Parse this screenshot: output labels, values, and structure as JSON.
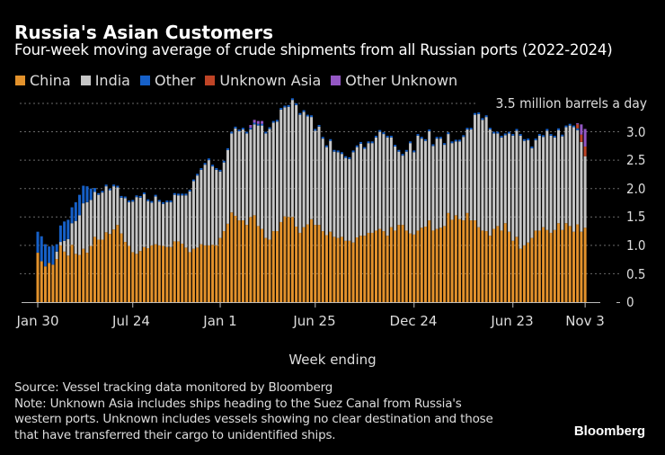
{
  "header": {
    "title": "Russia's Asian Customers",
    "subtitle": "Four-week moving average of crude shipments from all Russian ports (2022-2024)"
  },
  "footer": {
    "source": "Source: Vessel tracking data monitored by Bloomberg",
    "note_lines": [
      "Note: Unknown Asia includes ships heading to the Suez Canal from Russia's",
      "western ports. Unknown includes vessels showing no clear destination and those",
      "that have transferred their cargo to unidentified ships."
    ],
    "logo": "Bloomberg"
  },
  "chart_data": {
    "type": "bar",
    "stacked": true,
    "title": "Russia's Asian Customers",
    "subtitle": "Four-week moving average of crude shipments from all Russian ports (2022-2024)",
    "xlabel": "Week ending",
    "ylabel": "3.5 million barrels a day",
    "ylim": [
      0,
      3.5
    ],
    "yticks": [
      "0",
      "0.5",
      "1.0",
      "1.5",
      "2.0",
      "2.5",
      "3.0",
      "3.5 million barrels a day"
    ],
    "ytick_values": [
      0,
      0.5,
      1.0,
      1.5,
      2.0,
      2.5,
      3.0,
      3.5
    ],
    "xticks": [
      "Jan 30",
      "Jul 24",
      "Jan 1",
      "Jun 25",
      "Dec 24",
      "Jun 23",
      "Nov 3"
    ],
    "grid": true,
    "legend_position": "top-left",
    "colors": {
      "China": "#e3922c",
      "India": "#c6c6c6",
      "Other": "#1660c8",
      "Unknown Asia": "#bf4426",
      "Other Unknown": "#9457c4"
    },
    "series": [
      {
        "name": "China",
        "values": [
          0.87,
          0.72,
          0.63,
          0.69,
          0.66,
          0.76,
          1.0,
          0.89,
          0.82,
          1.01,
          0.85,
          0.83,
          0.94,
          0.87,
          0.99,
          1.15,
          1.1,
          1.1,
          1.23,
          1.2,
          1.28,
          1.36,
          1.21,
          1.06,
          0.99,
          0.88,
          0.85,
          0.9,
          0.97,
          0.95,
          1.0,
          1.02,
          1.0,
          0.99,
          0.97,
          0.97,
          1.07,
          1.07,
          1.03,
          0.96,
          0.88,
          0.94,
          0.96,
          1.02,
          1.0,
          1.0,
          1.01,
          1.0,
          1.13,
          1.25,
          1.38,
          1.58,
          1.52,
          1.44,
          1.44,
          1.36,
          1.5,
          1.53,
          1.34,
          1.29,
          1.13,
          1.1,
          1.25,
          1.25,
          1.41,
          1.51,
          1.5,
          1.5,
          1.33,
          1.22,
          1.32,
          1.37,
          1.46,
          1.36,
          1.36,
          1.25,
          1.18,
          1.24,
          1.15,
          1.13,
          1.15,
          1.08,
          1.08,
          1.05,
          1.14,
          1.17,
          1.17,
          1.22,
          1.22,
          1.26,
          1.29,
          1.25,
          1.17,
          1.32,
          1.26,
          1.36,
          1.36,
          1.26,
          1.21,
          1.19,
          1.26,
          1.31,
          1.33,
          1.44,
          1.26,
          1.29,
          1.31,
          1.34,
          1.57,
          1.45,
          1.53,
          1.46,
          1.44,
          1.57,
          1.44,
          1.44,
          1.32,
          1.26,
          1.25,
          1.17,
          1.29,
          1.34,
          1.26,
          1.39,
          1.24,
          1.08,
          1.15,
          0.94,
          1.0,
          1.05,
          1.13,
          1.26,
          1.26,
          1.32,
          1.27,
          1.22,
          1.27,
          1.39,
          1.27,
          1.39,
          1.34,
          1.24,
          1.37,
          1.24,
          1.31
        ]
      },
      {
        "name": "India",
        "values": [
          0,
          0,
          0,
          0,
          0,
          0.13,
          0.06,
          0.19,
          0.29,
          0.38,
          0.58,
          0.7,
          0.8,
          0.89,
          0.81,
          0.79,
          0.79,
          0.83,
          0.81,
          0.77,
          0.76,
          0.66,
          0.63,
          0.77,
          0.77,
          0.89,
          1.0,
          0.94,
          0.93,
          0.83,
          0.75,
          0.84,
          0.77,
          0.74,
          0.79,
          0.79,
          0.82,
          0.81,
          0.85,
          0.92,
          1.07,
          1.19,
          1.27,
          1.31,
          1.42,
          1.5,
          1.38,
          1.33,
          1.17,
          1.21,
          1.3,
          1.39,
          1.54,
          1.57,
          1.6,
          1.61,
          1.54,
          1.6,
          1.77,
          1.82,
          1.84,
          1.95,
          1.91,
          1.93,
          1.98,
          1.92,
          1.94,
          2.06,
          2.14,
          2.08,
          2.03,
          1.9,
          1.8,
          1.66,
          1.73,
          1.63,
          1.55,
          1.6,
          1.5,
          1.51,
          1.46,
          1.46,
          1.44,
          1.59,
          1.59,
          1.62,
          1.53,
          1.58,
          1.58,
          1.64,
          1.71,
          1.71,
          1.73,
          1.58,
          1.48,
          1.29,
          1.22,
          1.39,
          1.59,
          1.45,
          1.67,
          1.57,
          1.51,
          1.57,
          1.49,
          1.59,
          1.57,
          1.43,
          1.39,
          1.35,
          1.3,
          1.37,
          1.47,
          1.47,
          1.6,
          1.86,
          1.99,
          1.95,
          2.01,
          1.87,
          1.68,
          1.63,
          1.64,
          1.55,
          1.73,
          1.85,
          1.87,
          1.99,
          1.84,
          1.8,
          1.58,
          1.59,
          1.67,
          1.59,
          1.75,
          1.71,
          1.63,
          1.64,
          1.65,
          1.69,
          1.77,
          1.84,
          1.66,
          1.58,
          1.26
        ]
      },
      {
        "name": "Other",
        "values": [
          0.37,
          0.44,
          0.39,
          0.29,
          0.33,
          0.13,
          0.29,
          0.34,
          0.34,
          0.28,
          0.33,
          0.36,
          0.31,
          0.28,
          0.2,
          0.07,
          0.03,
          0.03,
          0.03,
          0.03,
          0.03,
          0.03,
          0.03,
          0.03,
          0.03,
          0.03,
          0.03,
          0.03,
          0.03,
          0.03,
          0.03,
          0.03,
          0.03,
          0.03,
          0.03,
          0.03,
          0.03,
          0.03,
          0.03,
          0.03,
          0.03,
          0.03,
          0.03,
          0.03,
          0.03,
          0.03,
          0.03,
          0.03,
          0.03,
          0.03,
          0.03,
          0.03,
          0.03,
          0.03,
          0.03,
          0.03,
          0.03,
          0.03,
          0.03,
          0.03,
          0.03,
          0.03,
          0.03,
          0.03,
          0.03,
          0.03,
          0.03,
          0.03,
          0.03,
          0.03,
          0.03,
          0.03,
          0.03,
          0.03,
          0.03,
          0.03,
          0.03,
          0.03,
          0.03,
          0.03,
          0.03,
          0.03,
          0.03,
          0.03,
          0.03,
          0.03,
          0.03,
          0.03,
          0.03,
          0.03,
          0.03,
          0.03,
          0.03,
          0.03,
          0.03,
          0.03,
          0.03,
          0.03,
          0.03,
          0.03,
          0.03,
          0.03,
          0.03,
          0.03,
          0.03,
          0.03,
          0.03,
          0.03,
          0.03,
          0.03,
          0.03,
          0.03,
          0.03,
          0.03,
          0.03,
          0.03,
          0.03,
          0.03,
          0.03,
          0.03,
          0.03,
          0.03,
          0.03,
          0.03,
          0.03,
          0.03,
          0.03,
          0.03,
          0.03,
          0.03,
          0.03,
          0.03,
          0.03,
          0.03,
          0.03,
          0.03,
          0.03,
          0.03,
          0.03,
          0.03,
          0.03,
          0.03,
          0.03,
          0,
          0
        ]
      },
      {
        "name": "Unknown Asia",
        "values": [
          0,
          0,
          0,
          0,
          0,
          0,
          0,
          0,
          0,
          0,
          0,
          0,
          0,
          0,
          0,
          0,
          0,
          0,
          0,
          0,
          0,
          0,
          0,
          0,
          0,
          0,
          0,
          0,
          0,
          0,
          0,
          0,
          0,
          0,
          0,
          0,
          0,
          0,
          0,
          0,
          0,
          0,
          0,
          0,
          0,
          0,
          0,
          0,
          0,
          0,
          0,
          0,
          0,
          0,
          0,
          0,
          0,
          0,
          0,
          0,
          0,
          0,
          0,
          0,
          0,
          0,
          0,
          0,
          0,
          0,
          0,
          0,
          0,
          0,
          0,
          0,
          0,
          0,
          0,
          0,
          0,
          0,
          0,
          0,
          0,
          0,
          0,
          0,
          0,
          0,
          0,
          0,
          0,
          0,
          0,
          0,
          0,
          0,
          0,
          0,
          0,
          0,
          0,
          0,
          0,
          0,
          0,
          0,
          0,
          0,
          0,
          0,
          0,
          0,
          0,
          0,
          0,
          0,
          0,
          0,
          0,
          0,
          0,
          0,
          0,
          0,
          0,
          0,
          0,
          0,
          0,
          0,
          0,
          0,
          0,
          0,
          0,
          0,
          0,
          0,
          0,
          0,
          0.07,
          0.13,
          0.17
        ]
      },
      {
        "name": "Other Unknown",
        "values": [
          0,
          0,
          0,
          0,
          0,
          0,
          0,
          0,
          0,
          0,
          0,
          0,
          0,
          0,
          0,
          0,
          0,
          0,
          0,
          0,
          0,
          0,
          0,
          0,
          0,
          0,
          0,
          0,
          0,
          0,
          0,
          0,
          0,
          0,
          0,
          0,
          0,
          0,
          0,
          0,
          0,
          0,
          0,
          0,
          0,
          0,
          0,
          0,
          0,
          0,
          0,
          0,
          0,
          0,
          0,
          0,
          0.05,
          0.05,
          0.05,
          0.05,
          0,
          0,
          0,
          0,
          0,
          0,
          0,
          0,
          0,
          0,
          0,
          0,
          0,
          0,
          0,
          0,
          0,
          0,
          0,
          0,
          0,
          0,
          0,
          0,
          0,
          0,
          0,
          0,
          0,
          0,
          0,
          0,
          0,
          0,
          0,
          0,
          0,
          0,
          0,
          0,
          0,
          0,
          0,
          0,
          0,
          0,
          0,
          0,
          0,
          0,
          0,
          0,
          0,
          0,
          0,
          0,
          0,
          0,
          0,
          0,
          0,
          0,
          0,
          0,
          0,
          0,
          0,
          0,
          0,
          0,
          0,
          0,
          0,
          0,
          0,
          0,
          0,
          0,
          0,
          0,
          0,
          0,
          0.02,
          0.18,
          0.31
        ]
      }
    ]
  }
}
